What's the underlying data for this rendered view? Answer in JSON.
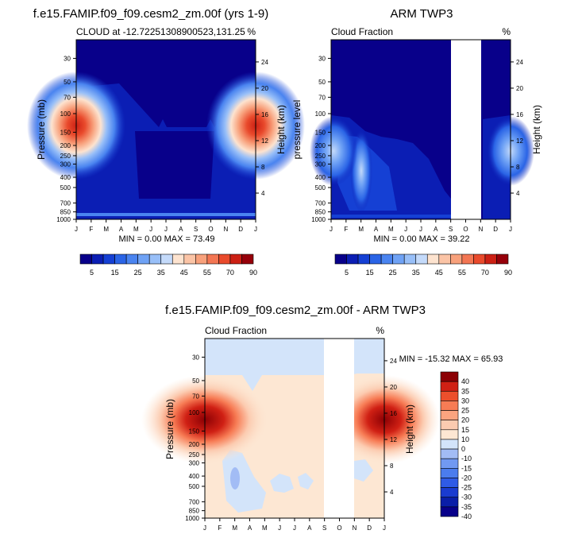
{
  "figure": {
    "panel_a_title": "f.e15.FAMIP.f09_f09.cesm2_zm.00f (yrs 1-9)",
    "panel_a_subtitle_left": "CLOUD at -12.7225130890052​3,131.25",
    "panel_a_subtitle_right": "%",
    "panel_b_title": "ARM TWP3",
    "panel_b_subtitle_left": "Cloud Fraction",
    "panel_b_subtitle_right": "%",
    "panel_c_title": "f.e15.FAMIP.f09_f09.cesm2_zm.00f - ARM TWP3",
    "panel_c_subtitle_left": "Cloud Fraction",
    "panel_c_subtitle_right": "%"
  },
  "chart_data": [
    {
      "type": "heatmap",
      "panel": "model",
      "title": "f.e15.FAMIP.f09_f09.cesm2_zm.00f (yrs 1-9)",
      "subtitle": "CLOUD at -12.72251308900523,131.25",
      "unit": "%",
      "ylabel": "Pressure (mb)",
      "y2label": "Height (km)",
      "months": [
        "J",
        "F",
        "M",
        "A",
        "M",
        "J",
        "J",
        "A",
        "S",
        "O",
        "N",
        "D",
        "J"
      ],
      "pressure_ticks": [
        30,
        50,
        70,
        100,
        150,
        200,
        250,
        300,
        400,
        500,
        700,
        850,
        1000
      ],
      "height_ticks": [
        24,
        20,
        16,
        12,
        8,
        4
      ],
      "ylim": [
        1000,
        20
      ],
      "stats": "MIN =   0.00 MAX =  73.49",
      "colorbar_levels": [
        5,
        10,
        15,
        20,
        25,
        30,
        35,
        40,
        45,
        50,
        55,
        60,
        70,
        80,
        90
      ],
      "colorbar_labels": [
        "5",
        "15",
        "25",
        "35",
        "45",
        "55",
        "70",
        "90"
      ],
      "features": [
        {
          "month": 0,
          "pressure": 150,
          "value": 73
        },
        {
          "month": 12,
          "pressure": 150,
          "value": 73
        },
        {
          "month": 6,
          "pressure": 300,
          "value": 2
        }
      ]
    },
    {
      "type": "heatmap",
      "panel": "obs",
      "title": "ARM TWP3",
      "subtitle": "Cloud Fraction",
      "unit": "%",
      "ylabel": "pressure level",
      "y2label": "Height (km)",
      "months": [
        "J",
        "F",
        "M",
        "A",
        "M",
        "J",
        "J",
        "A",
        "S",
        "O",
        "N",
        "D",
        "J"
      ],
      "pressure_ticks": [
        30,
        50,
        70,
        100,
        150,
        200,
        250,
        300,
        400,
        500,
        700,
        850,
        1000
      ],
      "height_ticks": [
        24,
        20,
        16,
        12,
        8,
        4
      ],
      "ylim": [
        1000,
        20
      ],
      "stats": "MIN =   0.00 MAX =  39.22",
      "missing_months": [
        "S",
        "O"
      ],
      "colorbar_levels": [
        5,
        10,
        15,
        20,
        25,
        30,
        35,
        40,
        45,
        50,
        55,
        60,
        70,
        80,
        90
      ],
      "colorbar_labels": [
        "5",
        "15",
        "25",
        "35",
        "45",
        "55",
        "70",
        "90"
      ]
    },
    {
      "type": "heatmap",
      "panel": "difference",
      "title": "f.e15.FAMIP.f09_f09.cesm2_zm.00f - ARM TWP3",
      "subtitle": "Cloud Fraction",
      "unit": "%",
      "ylabel": "Pressure (mb)",
      "y2label": "Height (km)",
      "months": [
        "J",
        "F",
        "M",
        "A",
        "M",
        "J",
        "J",
        "A",
        "S",
        "O",
        "N",
        "D",
        "J"
      ],
      "pressure_ticks": [
        30,
        50,
        70,
        100,
        150,
        200,
        250,
        300,
        400,
        500,
        700,
        850,
        1000
      ],
      "height_ticks": [
        24,
        20,
        16,
        12,
        8,
        4
      ],
      "ylim": [
        1000,
        20
      ],
      "stats": "MIN = -15.32 MAX =  65.93",
      "colorbar_levels": [
        -40,
        -35,
        -30,
        -25,
        -20,
        -15,
        -10,
        0,
        10,
        15,
        20,
        25,
        30,
        35,
        40
      ],
      "colorbar_labels": [
        "40",
        "35",
        "30",
        "25",
        "20",
        "15",
        "10",
        "0",
        "-10",
        "-15",
        "-20",
        "-25",
        "-30",
        "-35",
        "-40"
      ]
    }
  ],
  "colors": {
    "seq": [
      "#08008a",
      "#0b1eb4",
      "#1540d4",
      "#2a64e6",
      "#4a84f0",
      "#6fa2f5",
      "#98bff8",
      "#c4dafa",
      "#fde3cf",
      "#fbc4a6",
      "#f8a17c",
      "#f37653",
      "#e94a2c",
      "#cc2014",
      "#96000a"
    ],
    "diff": [
      "#08008a",
      "#0a1ea8",
      "#1a3bd0",
      "#2f5be6",
      "#4b7cee",
      "#7199f2",
      "#a2bcf5",
      "#d3e4fa",
      "#fde7d3",
      "#fccbb0",
      "#fba47f",
      "#f77c55",
      "#ec4f2c",
      "#d02014",
      "#8c0004"
    ]
  }
}
